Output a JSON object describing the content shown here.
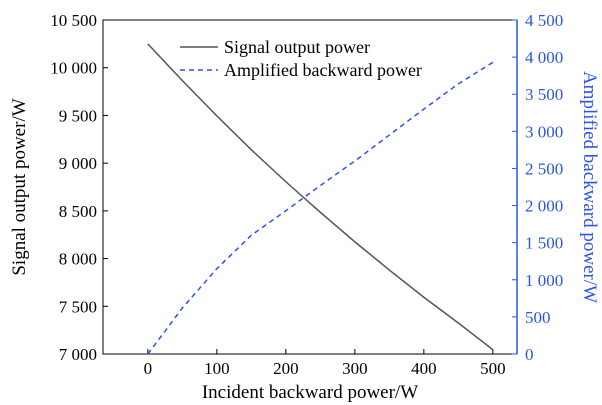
{
  "chart_data": {
    "type": "line",
    "title": "",
    "xlabel": "Incident backward power/W",
    "ylabel_left": "Signal output power/W",
    "ylabel_right": "Amplified backward power/W",
    "xlim": [
      -65,
      535
    ],
    "ylim_left": [
      7000,
      10500
    ],
    "ylim_right": [
      0,
      4500
    ],
    "x_ticks": [
      "0",
      "100",
      "200",
      "300",
      "400",
      "500"
    ],
    "y_left_ticks": [
      "7 000",
      "7 500",
      "8 000",
      "8 500",
      "9 000",
      "9 500",
      "10 000",
      "10 500"
    ],
    "y_right_ticks": [
      "0",
      "500",
      "1 000",
      "1 500",
      "2 000",
      "2 500",
      "3 000",
      "3 500",
      "4 000",
      "4 500"
    ],
    "grid": false,
    "legend_position": "top-center",
    "series": [
      {
        "name": "Signal output power",
        "axis": "left",
        "color": "#555555",
        "style": "solid",
        "x": [
          0,
          50,
          100,
          150,
          200,
          250,
          300,
          350,
          400,
          450,
          500
        ],
        "y": [
          10250,
          9865,
          9495,
          9140,
          8805,
          8485,
          8175,
          7880,
          7595,
          7325,
          7045
        ]
      },
      {
        "name": "Amplified backward power",
        "axis": "right",
        "color": "#2b55e8",
        "style": "dashed",
        "x": [
          0,
          50,
          100,
          150,
          200,
          250,
          300,
          350,
          400,
          450,
          500
        ],
        "y": [
          0,
          620,
          1150,
          1600,
          1930,
          2270,
          2600,
          2950,
          3300,
          3640,
          3930
        ]
      }
    ]
  }
}
